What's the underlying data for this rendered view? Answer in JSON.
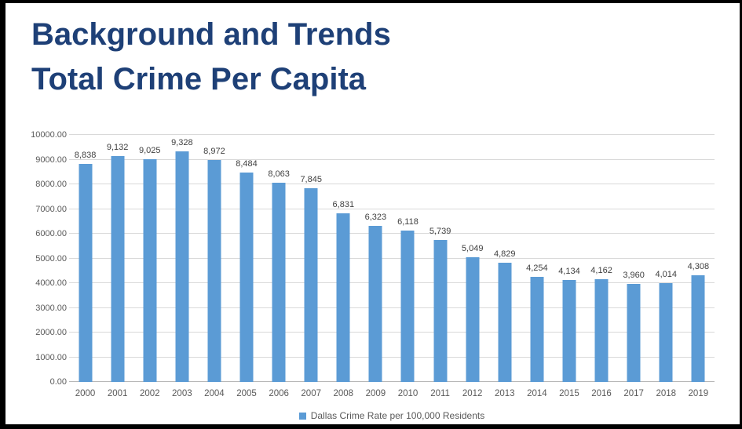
{
  "title": {
    "line1": "Background and Trends",
    "line2": "Total Crime Per Capita",
    "color": "#1e4077"
  },
  "chart_data": {
    "type": "bar",
    "title": "Background and Trends Total Crime Per Capita",
    "legend": "Dallas Crime Rate per 100,000 Residents",
    "legend_position": "bottom",
    "categories": [
      "2000",
      "2001",
      "2002",
      "2003",
      "2004",
      "2005",
      "2006",
      "2007",
      "2008",
      "2009",
      "2010",
      "2011",
      "2012",
      "2013",
      "2014",
      "2015",
      "2016",
      "2017",
      "2018",
      "2019"
    ],
    "values": [
      8838,
      9132,
      9025,
      9328,
      8972,
      8484,
      8063,
      7845,
      6831,
      6323,
      6118,
      5739,
      5049,
      4829,
      4254,
      4134,
      4162,
      3960,
      4014,
      4308
    ],
    "value_labels": [
      "8,838",
      "9,132",
      "9,025",
      "9,328",
      "8,972",
      "8,484",
      "8,063",
      "7,845",
      "6,831",
      "6,323",
      "6,118",
      "5,739",
      "5,049",
      "4,829",
      "4,254",
      "4,134",
      "4,162",
      "3,960",
      "4,014",
      "4,308"
    ],
    "xlabel": "",
    "ylabel": "",
    "ylim": [
      0,
      10000
    ],
    "ytick_step": 1000,
    "ytick_labels": [
      "0.00",
      "1000.00",
      "2000.00",
      "3000.00",
      "4000.00",
      "5000.00",
      "6000.00",
      "7000.00",
      "8000.00",
      "9000.00",
      "10000.00"
    ],
    "grid": true,
    "bar_color": "#5b9bd5",
    "gridline_color": "#d9d9d9",
    "axis_label_color": "#595959",
    "data_label_color": "#404040"
  }
}
